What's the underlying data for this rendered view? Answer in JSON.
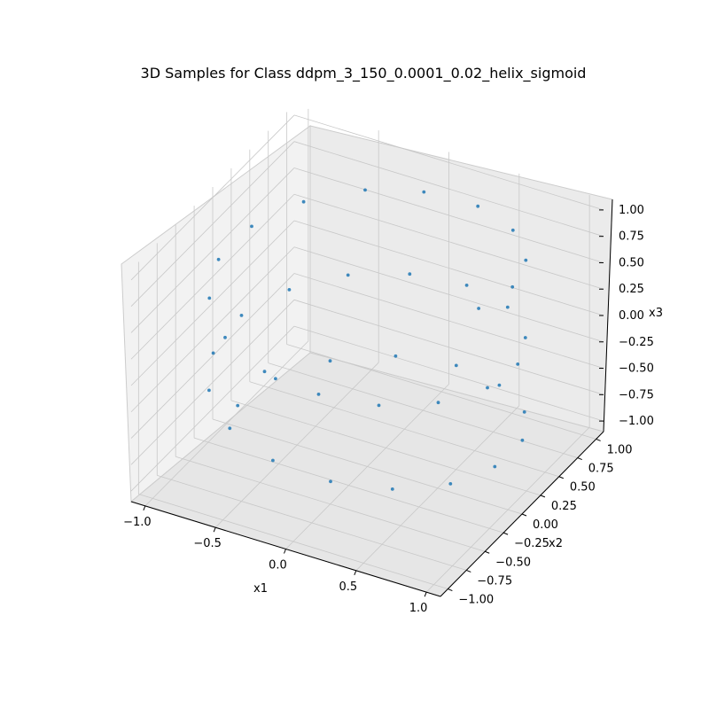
{
  "chart_data": {
    "type": "scatter",
    "projection": "3d",
    "title": "3D Samples for Class ddpm_3_150_0.0001_0.02_helix_sigmoid",
    "xlabel": "x1",
    "ylabel": "x2",
    "zlabel": "x3",
    "xlim": [
      -1.1,
      1.1
    ],
    "ylim": [
      -1.1,
      1.1
    ],
    "zlim": [
      -1.1,
      1.1
    ],
    "xticks": [
      -1.0,
      -0.5,
      0.0,
      0.5,
      1.0
    ],
    "xtick_labels": [
      "−1.0",
      "−0.5",
      "0.0",
      "0.5",
      "1.0"
    ],
    "yticks": [
      -1.0,
      -0.75,
      -0.5,
      -0.25,
      0.0,
      0.25,
      0.5,
      0.75,
      1.0
    ],
    "ytick_labels": [
      "−1.00",
      "−0.75",
      "−0.50",
      "−0.25",
      "0.00",
      "0.25",
      "0.50",
      "0.75",
      "1.00"
    ],
    "zticks": [
      -1.0,
      -0.75,
      -0.5,
      -0.25,
      0.0,
      0.25,
      0.5,
      0.75,
      1.0
    ],
    "ztick_labels": [
      "−1.00",
      "−0.75",
      "−0.50",
      "−0.25",
      "0.00",
      "0.25",
      "0.50",
      "0.75",
      "1.00"
    ],
    "grid": true,
    "point_color": "#1f77b4",
    "series": [
      {
        "values": [
          [
            -0.98,
            0.11,
            -1.0
          ],
          [
            -0.89,
            0.45,
            -0.95
          ],
          [
            -0.66,
            0.75,
            -0.9
          ],
          [
            -0.3,
            0.95,
            -0.85
          ],
          [
            0.11,
            0.99,
            -0.8
          ],
          [
            0.48,
            0.87,
            -0.75
          ],
          [
            0.79,
            0.62,
            -0.7
          ],
          [
            0.96,
            0.27,
            -0.65
          ],
          [
            0.98,
            -0.14,
            -0.6
          ],
          [
            0.86,
            -0.51,
            -0.55
          ],
          [
            0.6,
            -0.8,
            -0.5
          ],
          [
            0.25,
            -0.97,
            -0.45
          ],
          [
            -0.15,
            -0.99,
            -0.4
          ],
          [
            -0.53,
            -0.85,
            -0.35
          ],
          [
            -0.82,
            -0.58,
            -0.3
          ],
          [
            -0.97,
            -0.24,
            -0.25
          ],
          [
            -0.99,
            0.18,
            -0.2
          ],
          [
            -0.84,
            0.54,
            -0.15
          ],
          [
            -0.57,
            0.82,
            -0.1
          ],
          [
            -0.21,
            0.97,
            -0.05
          ],
          [
            0.19,
            0.98,
            0.0
          ],
          [
            0.56,
            0.83,
            0.05
          ],
          [
            0.85,
            0.52,
            0.1
          ],
          [
            0.98,
            0.17,
            0.15
          ],
          [
            0.97,
            -0.22,
            0.2
          ],
          [
            0.81,
            -0.58,
            0.25
          ],
          [
            0.53,
            -0.85,
            0.3
          ],
          [
            0.17,
            -0.98,
            0.35
          ],
          [
            -0.22,
            -0.97,
            0.4
          ],
          [
            -0.59,
            -0.8,
            0.45
          ],
          [
            -0.86,
            -0.5,
            0.5
          ],
          [
            -0.99,
            -0.13,
            0.55
          ],
          [
            -0.96,
            0.26,
            0.6
          ],
          [
            -0.78,
            0.62,
            0.65
          ],
          [
            -0.48,
            0.88,
            0.7
          ],
          [
            -0.12,
            0.99,
            0.75
          ],
          [
            0.28,
            0.96,
            0.8
          ],
          [
            0.63,
            0.77,
            0.85
          ],
          [
            0.89,
            0.45,
            0.9
          ],
          [
            0.99,
            0.08,
            0.95
          ],
          [
            0.95,
            -0.3,
            1.0
          ]
        ]
      }
    ]
  }
}
